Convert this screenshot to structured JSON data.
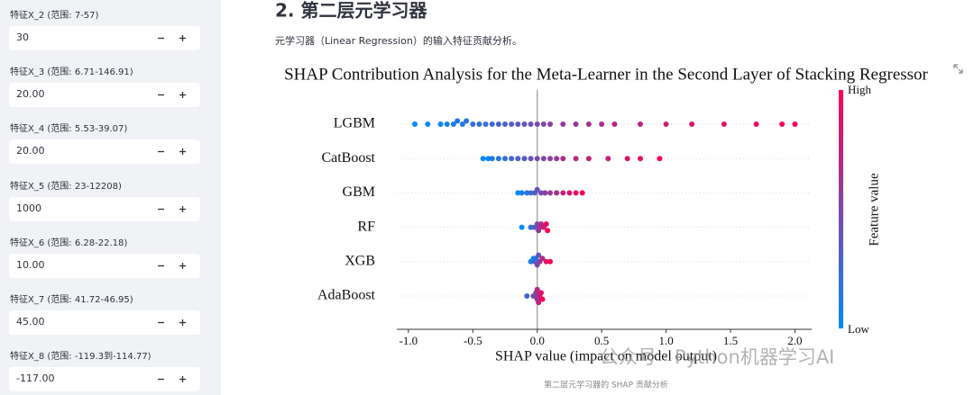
{
  "sidebar": {
    "inputs": [
      {
        "label": "特征X_2 (范围: 7-57)",
        "value": "30"
      },
      {
        "label": "特征X_3 (范围: 6.71-146.91)",
        "value": "20.00"
      },
      {
        "label": "特征X_4 (范围: 5.53-39.07)",
        "value": "20.00"
      },
      {
        "label": "特征X_5 (范围: 23-12208)",
        "value": "1000"
      },
      {
        "label": "特征X_6 (范围: 6.28-22.18)",
        "value": "10.00"
      },
      {
        "label": "特征X_7 (范围: 41.72-46.95)",
        "value": "45.00"
      },
      {
        "label": "特征X_8 (范围: -119.3到-114.77)",
        "value": "-117.00"
      }
    ]
  },
  "header": {
    "title": "2. 第二层元学习器",
    "description": "元学习器（Linear Regression）的输入特征贡献分析。"
  },
  "chart_data": {
    "type": "beeswarm",
    "title": "SHAP Contribution Analysis for the Meta-Learner in the Second Layer of Stacking Regressor",
    "x_label": "SHAP value (impact on model output)",
    "colorbar_label": "Feature value",
    "colorbar_high": "High",
    "colorbar_low": "Low",
    "color_low": "#008bfb",
    "color_high": "#ff0052",
    "categories": [
      "LGBM",
      "CatBoost",
      "GBM",
      "RF",
      "XGB",
      "AdaBoost"
    ],
    "values": [
      [
        -0.95,
        -0.85,
        -0.75,
        -0.7,
        -0.65,
        -0.62,
        -0.58,
        -0.55,
        -0.5,
        -0.45,
        -0.4,
        -0.35,
        -0.3,
        -0.25,
        -0.2,
        -0.15,
        -0.1,
        -0.05,
        0,
        0.05,
        0.1,
        0.2,
        0.3,
        0.4,
        0.5,
        0.6,
        0.8,
        1.0,
        1.2,
        1.45,
        1.7,
        1.9,
        2.0
      ],
      [
        -0.42,
        -0.38,
        -0.35,
        -0.3,
        -0.25,
        -0.2,
        -0.15,
        -0.1,
        -0.05,
        0,
        0.05,
        0.1,
        0.15,
        0.2,
        0.3,
        0.4,
        0.55,
        0.7,
        0.8,
        0.95
      ],
      [
        -0.15,
        -0.12,
        -0.08,
        -0.05,
        -0.02,
        0,
        0.03,
        0.06,
        0.1,
        0.15,
        0.2,
        0.25,
        0.3,
        0.35
      ],
      [
        -0.12,
        -0.05,
        -0.02,
        0,
        0.01,
        0.02,
        0.03,
        0.05,
        0.07,
        0.08
      ],
      [
        -0.05,
        -0.03,
        -0.02,
        -0.01,
        0,
        0.01,
        0.02,
        0.04,
        0.07,
        0.1
      ],
      [
        -0.08,
        -0.03,
        -0.02,
        -0.01,
        0,
        0,
        0.01,
        0.02,
        0.03,
        0.04
      ]
    ],
    "feature_values": [
      [
        0.0,
        0.02,
        0.05,
        0.08,
        0.1,
        0.12,
        0.14,
        0.16,
        0.18,
        0.2,
        0.22,
        0.25,
        0.28,
        0.3,
        0.33,
        0.36,
        0.4,
        0.43,
        0.46,
        0.5,
        0.53,
        0.57,
        0.6,
        0.64,
        0.68,
        0.72,
        0.76,
        0.8,
        0.84,
        0.88,
        0.92,
        0.96,
        1.0
      ],
      [
        0.0,
        0.05,
        0.1,
        0.15,
        0.2,
        0.25,
        0.3,
        0.35,
        0.4,
        0.45,
        0.5,
        0.55,
        0.6,
        0.65,
        0.7,
        0.75,
        0.8,
        0.85,
        0.9,
        1.0
      ],
      [
        0.0,
        0.08,
        0.15,
        0.22,
        0.3,
        0.38,
        0.45,
        0.52,
        0.6,
        0.68,
        0.75,
        0.83,
        0.9,
        1.0
      ],
      [
        0.0,
        0.2,
        0.35,
        0.45,
        0.55,
        0.65,
        0.72,
        0.8,
        0.9,
        1.0
      ],
      [
        0.1,
        0.0,
        0.3,
        0.2,
        0.5,
        0.4,
        0.6,
        0.7,
        0.85,
        1.0
      ],
      [
        0.3,
        0.4,
        0.5,
        0.55,
        0.6,
        0.7,
        0.75,
        0.8,
        0.9,
        1.0
      ]
    ],
    "xlim": [
      -1.09,
      2.13
    ],
    "xticks": [
      {
        "value": -1.0,
        "label": "-1.0"
      },
      -0.5,
      {
        "value": 0.0,
        "label": "0.0"
      },
      0.5,
      {
        "value": 1.0,
        "label": "1.0"
      },
      1.5,
      {
        "value": 2.0,
        "label": "2.0"
      }
    ]
  },
  "caption": "第二层元学习器的 SHAP 贡献分析",
  "watermark": "公众号 · Python机器学习AI"
}
